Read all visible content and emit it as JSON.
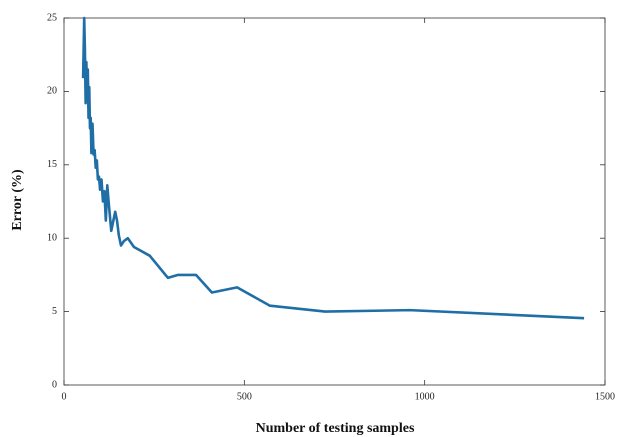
{
  "chart_data": {
    "type": "line",
    "x_label": "Number of testing samples",
    "y_label": "Error (%)",
    "x": [
      53,
      56,
      58,
      60,
      62,
      64,
      66,
      68,
      70,
      72,
      74,
      76,
      79,
      82,
      85,
      88,
      91,
      94,
      97,
      100,
      104,
      108,
      112,
      116,
      120,
      124,
      127,
      131,
      136,
      142,
      147,
      152,
      158,
      166,
      177,
      194,
      238,
      288,
      316,
      366,
      410,
      480,
      571,
      724,
      959,
      1442
    ],
    "series": [
      {
        "name": "Error",
        "color": "#1f6ea6",
        "values": [
          20.9,
          25,
          22.8,
          19.2,
          22.0,
          19.5,
          21.5,
          18.2,
          20.3,
          17.5,
          18.2,
          15.8,
          17.8,
          15.7,
          16.0,
          14.8,
          15.3,
          14.0,
          14.2,
          13.3,
          14.0,
          12.5,
          13.2,
          11.2,
          13.6,
          12.4,
          11.6,
          10.5,
          11.1,
          11.8,
          11.2,
          10.2,
          9.5,
          9.8,
          10.0,
          9.4,
          8.8,
          7.3,
          7.5,
          7.5,
          6.3,
          6.65,
          5.4,
          5.0,
          5.1,
          4.55
        ]
      }
    ],
    "xlim": [
      0,
      1500
    ],
    "xticks": [
      0,
      500,
      1000,
      1500
    ],
    "ylim": [
      0,
      25
    ],
    "yticks": [
      0,
      5,
      10,
      15,
      20,
      25
    ]
  }
}
